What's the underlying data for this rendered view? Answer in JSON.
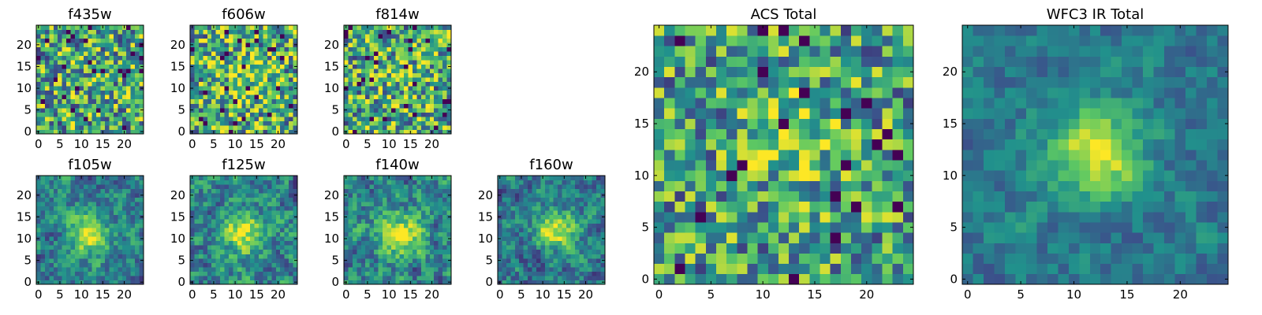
{
  "figure": {
    "description_type": "image-grid",
    "colormap": [
      "#440154",
      "#3b528b",
      "#21918c",
      "#5ec962",
      "#fde725"
    ]
  },
  "chart_data": [
    {
      "type": "heatmap",
      "title": "f435w",
      "grid_size": 25,
      "pattern": "noise",
      "seed": 11,
      "peak": [
        12,
        12
      ],
      "peak_strength": 0.05,
      "sigma": 4,
      "noise": 0.55,
      "smooth": 0,
      "base": 0.58,
      "x_ticks": [
        "0",
        "5",
        "10",
        "15",
        "20"
      ],
      "y_ticks": [
        "0",
        "5",
        "10",
        "15",
        "20"
      ]
    },
    {
      "type": "heatmap",
      "title": "f606w",
      "grid_size": 25,
      "pattern": "noise",
      "seed": 23,
      "peak": [
        13,
        12
      ],
      "peak_strength": 0.2,
      "sigma": 4,
      "noise": 0.55,
      "smooth": 0,
      "base": 0.6,
      "x_ticks": [
        "0",
        "5",
        "10",
        "15",
        "20"
      ],
      "y_ticks": [
        "0",
        "5",
        "10",
        "15",
        "20"
      ]
    },
    {
      "type": "heatmap",
      "title": "f814w",
      "grid_size": 25,
      "pattern": "noise",
      "seed": 37,
      "peak": [
        13,
        12
      ],
      "peak_strength": 0.12,
      "sigma": 4,
      "noise": 0.55,
      "smooth": 0,
      "base": 0.58,
      "x_ticks": [
        "0",
        "5",
        "10",
        "15",
        "20"
      ],
      "y_ticks": [
        "0",
        "5",
        "10",
        "15",
        "20"
      ]
    },
    {
      "type": "heatmap",
      "title": "f105w",
      "grid_size": 25,
      "pattern": "blob",
      "seed": 41,
      "peak": [
        12,
        11
      ],
      "peak_strength": 0.55,
      "sigma": 3.2,
      "noise": 0.45,
      "smooth": 1,
      "base": 0.42,
      "x_ticks": [
        "0",
        "5",
        "10",
        "15",
        "20"
      ],
      "y_ticks": [
        "0",
        "5",
        "10",
        "15",
        "20"
      ]
    },
    {
      "type": "heatmap",
      "title": "f125w",
      "grid_size": 25,
      "pattern": "blob",
      "seed": 53,
      "peak": [
        12,
        11
      ],
      "peak_strength": 0.45,
      "sigma": 3.5,
      "noise": 0.5,
      "smooth": 1,
      "base": 0.45,
      "x_ticks": [
        "0",
        "5",
        "10",
        "15",
        "20"
      ],
      "y_ticks": [
        "0",
        "5",
        "10",
        "15",
        "20"
      ]
    },
    {
      "type": "heatmap",
      "title": "f140w",
      "grid_size": 25,
      "pattern": "blob",
      "seed": 67,
      "peak": [
        13,
        11
      ],
      "peak_strength": 0.5,
      "sigma": 3.5,
      "noise": 0.5,
      "smooth": 1,
      "base": 0.45,
      "x_ticks": [
        "0",
        "5",
        "10",
        "15",
        "20"
      ],
      "y_ticks": [
        "0",
        "5",
        "10",
        "15",
        "20"
      ]
    },
    {
      "type": "heatmap",
      "title": "f160w",
      "grid_size": 25,
      "pattern": "blob",
      "seed": 79,
      "peak": [
        13,
        12
      ],
      "peak_strength": 0.6,
      "sigma": 3.0,
      "noise": 0.45,
      "smooth": 1,
      "base": 0.4,
      "x_ticks": [
        "0",
        "5",
        "10",
        "15",
        "20"
      ],
      "y_ticks": [
        "0",
        "5",
        "10",
        "15",
        "20"
      ]
    },
    {
      "type": "heatmap",
      "title": "ACS Total",
      "grid_size": 25,
      "pattern": "noise",
      "seed": 97,
      "peak": [
        13,
        14
      ],
      "peak_strength": 0.25,
      "sigma": 3.5,
      "noise": 0.5,
      "smooth": 0,
      "base": 0.55,
      "x_ticks": [
        "0",
        "5",
        "10",
        "15",
        "20"
      ],
      "y_ticks": [
        "0",
        "5",
        "10",
        "15",
        "20"
      ]
    },
    {
      "type": "heatmap",
      "title": "WFC3 IR Total",
      "grid_size": 25,
      "pattern": "blob",
      "seed": 131,
      "peak": [
        12,
        12
      ],
      "peak_strength": 0.6,
      "sigma": 3.0,
      "noise": 0.3,
      "smooth": 1,
      "base": 0.4,
      "x_ticks": [
        "0",
        "5",
        "10",
        "15",
        "20"
      ],
      "y_ticks": [
        "0",
        "5",
        "10",
        "15",
        "20"
      ]
    }
  ]
}
